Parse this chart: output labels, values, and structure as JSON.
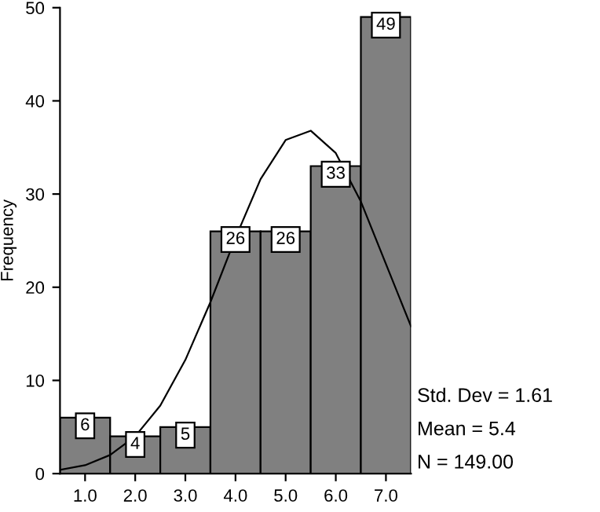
{
  "chart_data": {
    "type": "histogram",
    "ylabel": "Frequency",
    "bins": [
      0.5,
      1.5,
      2.5,
      3.5,
      4.5,
      5.5,
      6.5,
      7.5
    ],
    "values": [
      6,
      4,
      5,
      26,
      26,
      33,
      49
    ],
    "color": "#808080",
    "value_labels": [
      "6",
      "4",
      "5",
      "26",
      "26",
      "33",
      "49"
    ],
    "series": [
      {
        "type": "line",
        "color": "#000000",
        "x": [
          0.5,
          1,
          1.5,
          2,
          2.5,
          3,
          3.5,
          4,
          4.5,
          5,
          5.5,
          6,
          6.5,
          7,
          7.5
        ],
        "values": [
          0.4,
          0.9,
          2,
          4,
          7.3,
          12.2,
          18.4,
          25.3,
          31.6,
          35.8,
          36.8,
          34.4,
          29.2,
          22.5,
          15.8
        ]
      }
    ],
    "xlim": [
      0.5,
      7.5
    ],
    "xticks": [
      {
        "value": 1,
        "label": "1.0"
      },
      {
        "value": 2,
        "label": "2.0"
      },
      {
        "value": 3,
        "label": "3.0"
      },
      {
        "value": 4,
        "label": "4.0"
      },
      {
        "value": 5,
        "label": "5.0"
      },
      {
        "value": 6,
        "label": "6.0"
      },
      {
        "value": 7,
        "label": "7.0"
      }
    ],
    "ylim": [
      0,
      50
    ],
    "yticks": [
      0,
      10,
      20,
      30,
      40,
      50
    ],
    "annotations": [
      "Std. Dev = 1.61",
      "Mean = 5.4",
      "N = 149.00"
    ]
  }
}
